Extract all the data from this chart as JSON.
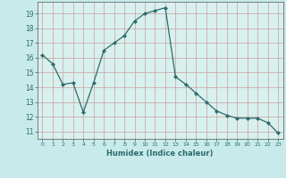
{
  "x": [
    0,
    1,
    2,
    3,
    4,
    5,
    6,
    7,
    8,
    9,
    10,
    11,
    12,
    13,
    14,
    15,
    16,
    17,
    18,
    19,
    20,
    21,
    22,
    23
  ],
  "y": [
    16.2,
    15.6,
    14.2,
    14.3,
    12.3,
    14.3,
    16.5,
    17.0,
    17.5,
    18.5,
    19.0,
    19.2,
    19.4,
    14.7,
    14.2,
    13.6,
    13.0,
    12.4,
    12.1,
    11.9,
    11.9,
    11.9,
    11.6,
    10.9
  ],
  "xlabel": "Humidex (Indice chaleur)",
  "xlim": [
    -0.5,
    23.5
  ],
  "ylim": [
    10.5,
    19.8
  ],
  "yticks": [
    11,
    12,
    13,
    14,
    15,
    16,
    17,
    18,
    19
  ],
  "xticks": [
    0,
    1,
    2,
    3,
    4,
    5,
    6,
    7,
    8,
    9,
    10,
    11,
    12,
    13,
    14,
    15,
    16,
    17,
    18,
    19,
    20,
    21,
    22,
    23
  ],
  "line_color": "#2d6b6b",
  "marker_color": "#2d6b6b",
  "bg_color": "#c8eaea",
  "grid_color": "#c8a0a0",
  "plot_bg": "#d8f0ee"
}
